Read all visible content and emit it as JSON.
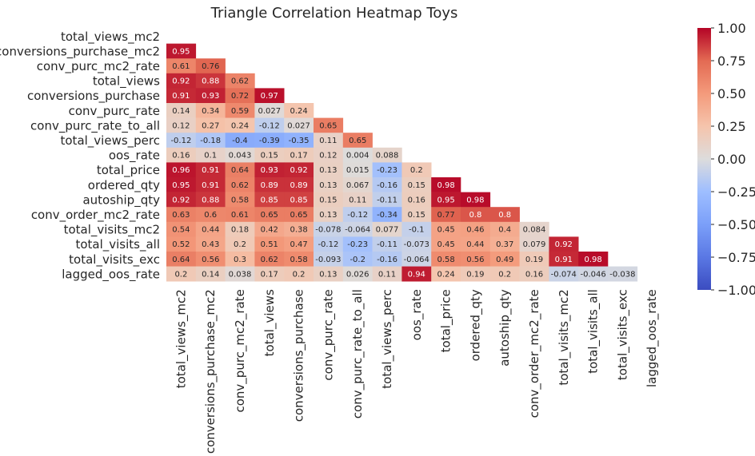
{
  "chart_data": {
    "type": "heatmap",
    "title": "Triangle Correlation Heatmap Toys",
    "variables": [
      "total_views_mc2",
      "conversions_purchase_mc2",
      "conv_purc_mc2_rate",
      "total_views",
      "conversions_purchase",
      "conv_purc_rate",
      "conv_purc_rate_to_all",
      "total_views_perc",
      "oos_rate",
      "total_price",
      "ordered_qty",
      "autoship_qty",
      "conv_order_mc2_rate",
      "total_visits_mc2",
      "total_visits_all",
      "total_visits_exc",
      "lagged_oos_rate"
    ],
    "matrix_lower_triangle": [
      [],
      [
        0.95
      ],
      [
        0.61,
        0.76
      ],
      [
        0.92,
        0.88,
        0.62
      ],
      [
        0.91,
        0.93,
        0.72,
        0.97
      ],
      [
        0.14,
        0.34,
        0.59,
        0.027,
        0.24
      ],
      [
        0.12,
        0.27,
        0.24,
        -0.12,
        0.027,
        0.65
      ],
      [
        -0.12,
        -0.18,
        -0.4,
        -0.39,
        -0.35,
        0.11,
        0.65
      ],
      [
        0.16,
        0.1,
        0.043,
        0.15,
        0.17,
        0.12,
        0.004,
        0.088
      ],
      [
        0.96,
        0.91,
        0.64,
        0.93,
        0.92,
        0.13,
        0.015,
        -0.23,
        0.2
      ],
      [
        0.95,
        0.91,
        0.62,
        0.89,
        0.89,
        0.13,
        0.067,
        -0.16,
        0.15,
        0.98
      ],
      [
        0.92,
        0.88,
        0.58,
        0.85,
        0.85,
        0.15,
        0.11,
        -0.11,
        0.16,
        0.95,
        0.98
      ],
      [
        0.63,
        0.6,
        0.61,
        0.65,
        0.65,
        0.13,
        -0.12,
        -0.34,
        0.15,
        0.77,
        0.8,
        0.8
      ],
      [
        0.54,
        0.44,
        0.18,
        0.42,
        0.38,
        -0.078,
        -0.064,
        0.077,
        -0.1,
        0.45,
        0.46,
        0.4,
        0.084
      ],
      [
        0.52,
        0.43,
        0.2,
        0.51,
        0.47,
        -0.12,
        -0.23,
        -0.11,
        -0.073,
        0.45,
        0.44,
        0.37,
        0.079,
        0.92
      ],
      [
        0.64,
        0.56,
        0.3,
        0.62,
        0.58,
        -0.093,
        -0.2,
        -0.16,
        -0.064,
        0.58,
        0.56,
        0.49,
        0.19,
        0.91,
        0.98
      ],
      [
        0.2,
        0.14,
        0.038,
        0.17,
        0.2,
        0.13,
        0.026,
        0.11,
        0.94,
        0.24,
        0.19,
        0.2,
        0.16,
        -0.074,
        -0.046,
        -0.038
      ]
    ],
    "colorbar": {
      "colormap": "coolwarm",
      "vmin": -1.0,
      "vmax": 1.0,
      "ticks": [
        "1.00",
        "0.75",
        "0.50",
        "0.25",
        "0.00",
        "-0.25",
        "-0.50",
        "-0.75",
        "-1.00"
      ]
    },
    "grid": false
  }
}
